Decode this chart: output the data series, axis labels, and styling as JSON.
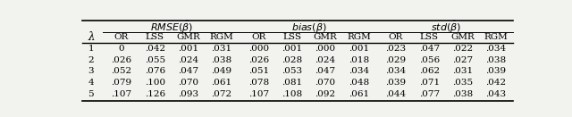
{
  "lambda_vals": [
    "1",
    "2",
    "3",
    "4",
    "5"
  ],
  "rmse": {
    "OR": [
      "0",
      ".026",
      ".052",
      ".079",
      ".107"
    ],
    "LSS": [
      ".042",
      ".055",
      ".076",
      ".100",
      ".126"
    ],
    "GMR": [
      ".001",
      ".024",
      ".047",
      ".070",
      ".093"
    ],
    "RGM": [
      ".031",
      ".038",
      ".049",
      ".061",
      ".072"
    ]
  },
  "bias": {
    "OR": [
      ".000",
      ".026",
      ".051",
      ".078",
      ".107"
    ],
    "LSS": [
      ".001",
      ".028",
      ".053",
      ".081",
      ".108"
    ],
    "GMR": [
      ".000",
      ".024",
      ".047",
      ".070",
      ".092"
    ],
    "RGM": [
      ".001",
      ".018",
      ".034",
      ".048",
      ".061"
    ]
  },
  "std": {
    "OR": [
      ".023",
      ".029",
      ".034",
      ".039",
      ".044"
    ],
    "LSS": [
      ".047",
      ".056",
      ".062",
      ".071",
      ".077"
    ],
    "GMR": [
      ".022",
      ".027",
      ".031",
      ".035",
      ".038"
    ],
    "RGM": [
      ".034",
      ".038",
      ".039",
      ".042",
      ".043"
    ]
  },
  "col_headers": [
    "OR",
    "LSS",
    "GMR",
    "RGM"
  ],
  "lambda_header": "λ",
  "bg_color": "#f2f2ee"
}
